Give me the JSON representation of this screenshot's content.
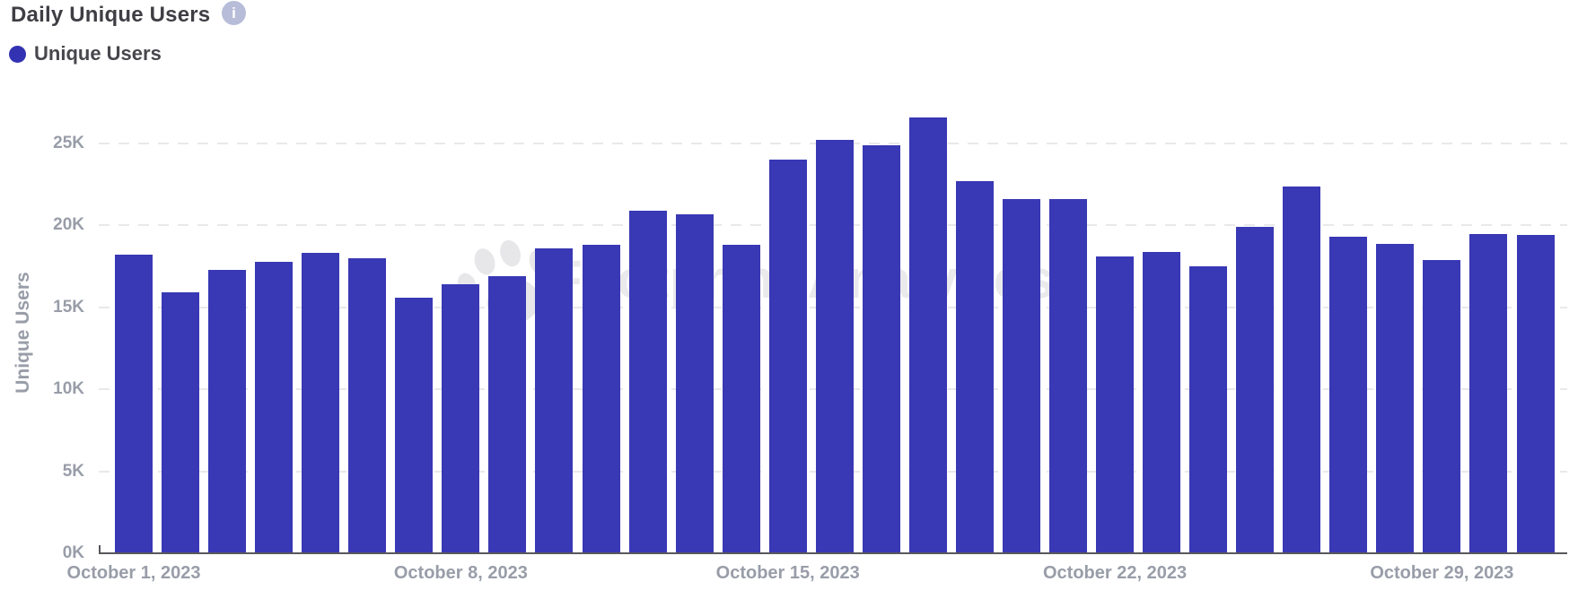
{
  "header": {
    "title": "Daily Unique Users"
  },
  "legend": {
    "label": "Unique Users",
    "dot_color": "#3232b2"
  },
  "watermark": {
    "text": "Footprint Analytics"
  },
  "chart_data": {
    "type": "bar",
    "title": "Daily Unique Users",
    "xlabel": "",
    "ylabel": "Unique Users",
    "ylim": [
      0,
      27000
    ],
    "grid": "horizontal-dashed",
    "legend_position": "top-left",
    "bar_color": "#3938b5",
    "y_ticks": [
      0,
      5000,
      10000,
      15000,
      20000,
      25000
    ],
    "y_tick_labels": [
      "0K",
      "5K",
      "10K",
      "15K",
      "20K",
      "25K"
    ],
    "categories": [
      "October 1, 2023",
      "October 2, 2023",
      "October 3, 2023",
      "October 4, 2023",
      "October 5, 2023",
      "October 6, 2023",
      "October 7, 2023",
      "October 8, 2023",
      "October 9, 2023",
      "October 10, 2023",
      "October 11, 2023",
      "October 12, 2023",
      "October 13, 2023",
      "October 14, 2023",
      "October 15, 2023",
      "October 16, 2023",
      "October 17, 2023",
      "October 18, 2023",
      "October 19, 2023",
      "October 20, 2023",
      "October 21, 2023",
      "October 22, 2023",
      "October 23, 2023",
      "October 24, 2023",
      "October 25, 2023",
      "October 26, 2023",
      "October 27, 2023",
      "October 28, 2023",
      "October 29, 2023",
      "October 30, 2023",
      "October 31, 2023"
    ],
    "x_tick_indices": [
      0,
      7,
      14,
      21,
      28
    ],
    "x_tick_labels": [
      "October 1, 2023",
      "October 8, 2023",
      "October 15, 2023",
      "October 22, 2023",
      "October 29, 2023"
    ],
    "series": [
      {
        "name": "Unique Users",
        "values": [
          18200,
          15900,
          17300,
          17800,
          18300,
          18000,
          15600,
          16400,
          16900,
          18600,
          18800,
          20900,
          20700,
          18800,
          24000,
          25200,
          24900,
          26600,
          22700,
          21600,
          21600,
          18100,
          18400,
          17500,
          19900,
          22400,
          19300,
          18900,
          17900,
          19500,
          19400
        ]
      }
    ]
  }
}
